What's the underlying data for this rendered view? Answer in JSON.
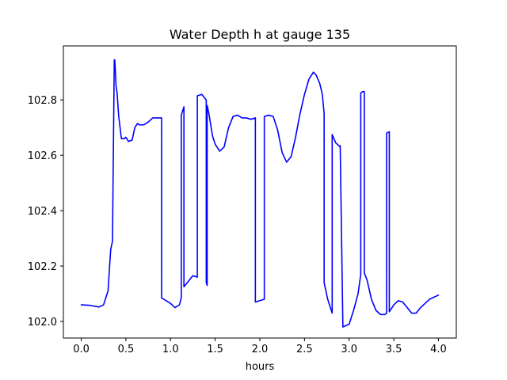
{
  "chart_data": {
    "type": "line",
    "title": "Water Depth h at gauge 135",
    "xlabel": "hours",
    "ylabel": "",
    "xlim": [
      -0.2,
      4.2
    ],
    "ylim": [
      101.94,
      102.995
    ],
    "xticks": [
      0.0,
      0.5,
      1.0,
      1.5,
      2.0,
      2.5,
      3.0,
      3.5,
      4.0
    ],
    "xtick_labels": [
      "0.0",
      "0.5",
      "1.0",
      "1.5",
      "2.0",
      "2.5",
      "3.0",
      "3.5",
      "4.0"
    ],
    "yticks": [
      102.0,
      102.2,
      102.4,
      102.6,
      102.8
    ],
    "ytick_labels": [
      "102.0",
      "102.2",
      "102.4",
      "102.6",
      "102.8"
    ],
    "grid": false,
    "series": [
      {
        "color": "#0000ff",
        "x": [
          0.0,
          0.1,
          0.2,
          0.25,
          0.3,
          0.33,
          0.35,
          0.37,
          0.375,
          0.38,
          0.39,
          0.4,
          0.42,
          0.45,
          0.48,
          0.5,
          0.53,
          0.57,
          0.6,
          0.63,
          0.65,
          0.7,
          0.75,
          0.8,
          0.85,
          0.9,
          0.9,
          1.0,
          1.05,
          1.1,
          1.12,
          1.12,
          1.15,
          1.15,
          1.2,
          1.25,
          1.3,
          1.3,
          1.35,
          1.4,
          1.4,
          1.41,
          1.41,
          1.43,
          1.47,
          1.5,
          1.55,
          1.6,
          1.65,
          1.7,
          1.75,
          1.8,
          1.85,
          1.9,
          1.95,
          1.95,
          2.0,
          2.05,
          2.05,
          2.1,
          2.15,
          2.2,
          2.25,
          2.3,
          2.35,
          2.4,
          2.45,
          2.5,
          2.55,
          2.6,
          2.63,
          2.67,
          2.7,
          2.72,
          2.72,
          2.76,
          2.81,
          2.81,
          2.85,
          2.9,
          2.9,
          2.93,
          3.0,
          3.05,
          3.1,
          3.13,
          3.13,
          3.15,
          3.17,
          3.17,
          3.2,
          3.25,
          3.3,
          3.35,
          3.4,
          3.42,
          3.42,
          3.45,
          3.45,
          3.5,
          3.55,
          3.6,
          3.65,
          3.7,
          3.75,
          3.8,
          3.9,
          4.0
        ],
        "y": [
          102.06,
          102.058,
          102.052,
          102.06,
          102.11,
          102.26,
          102.29,
          102.945,
          102.945,
          102.92,
          102.85,
          102.83,
          102.74,
          102.66,
          102.66,
          102.665,
          102.65,
          102.655,
          102.7,
          102.715,
          102.71,
          102.71,
          102.72,
          102.735,
          102.735,
          102.735,
          102.085,
          102.065,
          102.05,
          102.06,
          102.085,
          102.745,
          102.775,
          102.125,
          102.145,
          102.165,
          102.16,
          102.815,
          102.82,
          102.8,
          102.14,
          102.13,
          102.78,
          102.75,
          102.67,
          102.64,
          102.615,
          102.63,
          102.7,
          102.74,
          102.745,
          102.735,
          102.735,
          102.73,
          102.735,
          102.07,
          102.075,
          102.08,
          102.74,
          102.745,
          102.74,
          102.69,
          102.61,
          102.575,
          102.595,
          102.665,
          102.75,
          102.82,
          102.875,
          102.9,
          102.89,
          102.86,
          102.82,
          102.75,
          102.14,
          102.08,
          102.03,
          102.675,
          102.645,
          102.63,
          102.635,
          101.98,
          101.99,
          102.04,
          102.1,
          102.17,
          102.825,
          102.83,
          102.83,
          102.175,
          102.15,
          102.08,
          102.04,
          102.025,
          102.025,
          102.03,
          102.68,
          102.685,
          102.035,
          102.06,
          102.075,
          102.07,
          102.05,
          102.03,
          102.03,
          102.05,
          102.08,
          102.095
        ]
      }
    ]
  }
}
